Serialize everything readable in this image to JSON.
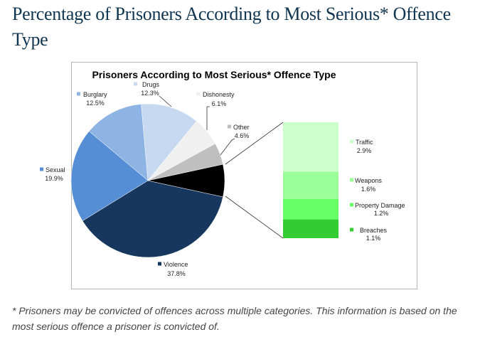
{
  "heading": "Percentage of Prisoners According to Most Serious* Offence Type",
  "footnote": "* Prisoners may be convicted of offences across multiple categories. This information is based on the most serious offence a prisoner is convicted of.",
  "chart_data": {
    "type": "pie",
    "title": "Prisoners According to Most Serious* Offence Type",
    "unit": "%",
    "slices": [
      {
        "name": "Violence",
        "label": "Violence",
        "value": 37.8,
        "value_label": "37.8%",
        "color": "#17375e"
      },
      {
        "name": "Sexual",
        "label": "Sexual",
        "value": 19.9,
        "value_label": "19.9%",
        "color": "#558ed5"
      },
      {
        "name": "Burglary",
        "label": "Burglary",
        "value": 12.5,
        "value_label": "12.5%",
        "color": "#8eb4e3"
      },
      {
        "name": "Drugs",
        "label": "Drugs",
        "value": 12.3,
        "value_label": "12.3%",
        "color": "#c6d9f1"
      },
      {
        "name": "Dishonesty",
        "label": "Dishonesty",
        "value": 6.1,
        "value_label": "6.1%",
        "color": "#f0f0f0"
      },
      {
        "name": "Other",
        "label": "Other",
        "value": 4.6,
        "value_label": "4.6%",
        "color": "#bfbfbf"
      },
      {
        "name": "Breakdown group",
        "value": 6.8,
        "color": "#000000"
      }
    ],
    "breakdown": {
      "type": "stacked-bar",
      "of": "Breakdown group",
      "segments": [
        {
          "label": "Traffic",
          "value": 2.9,
          "value_label": "2.9%",
          "color": "#ccffcc"
        },
        {
          "label": "Weapons",
          "value": 1.6,
          "value_label": "1.6%",
          "color": "#99ff99"
        },
        {
          "label": "Property Damage",
          "value": 1.2,
          "value_label": "1.2%",
          "color": "#66ff66"
        },
        {
          "label": "Breaches",
          "value": 1.1,
          "value_label": "1.1%",
          "color": "#33cc33"
        }
      ]
    }
  }
}
